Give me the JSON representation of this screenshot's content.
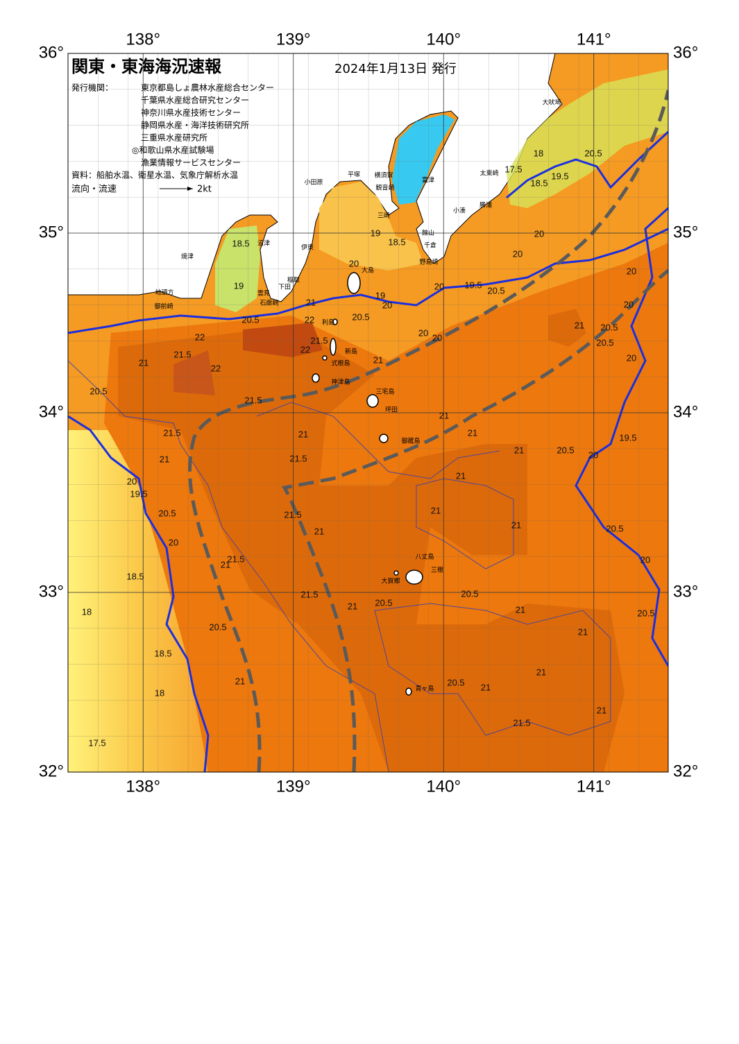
{
  "header": {
    "title": "関東・東海海況速報",
    "date": "2024年1月13日 発行"
  },
  "issuers": {
    "label": "発行機関：",
    "names": [
      "東京都島しょ農林水産総合センター",
      "千葉県水産総合研究センター",
      "神奈川県水産技術センター",
      "静岡県水産・海洋技術研究所",
      "三重県水産研究所",
      "◎和歌山県水産試験場",
      "漁業情報サービスセンター"
    ]
  },
  "source": "資料：船舶水温、衛星水温、気象庁解析水温",
  "legend": {
    "label": "流向・流速",
    "scale": "2kt"
  },
  "axes": {
    "lon_ticks": [
      {
        "value": 138,
        "label": "138°"
      },
      {
        "value": 139,
        "label": "139°"
      },
      {
        "value": 140,
        "label": "140°"
      },
      {
        "value": 141,
        "label": "141°"
      }
    ],
    "lat_ticks": [
      {
        "value": 36,
        "label": "36°"
      },
      {
        "value": 35,
        "label": "35°"
      },
      {
        "value": 34,
        "label": "34°"
      },
      {
        "value": 33,
        "label": "33°"
      },
      {
        "value": 32,
        "label": "32°"
      }
    ]
  },
  "places": [
    "大吠埼",
    "太東崎",
    "勝浦",
    "小湊",
    "館山",
    "千倉",
    "野島埼",
    "富津",
    "横須賀",
    "観音崎",
    "三崎",
    "平塚",
    "小田原",
    "伊東",
    "稲取",
    "下田",
    "雲見",
    "石廊崎",
    "沼津",
    "焼津",
    "地頭方",
    "御前崎",
    "大島",
    "利島",
    "新島",
    "式根島",
    "神津島",
    "三宅島",
    "坪田",
    "御蔵島",
    "八丈島",
    "三根",
    "大賀郷",
    "青ヶ島"
  ],
  "contour_labels": [
    "20.5",
    "22",
    "21",
    "21.5",
    "22",
    "22",
    "21.5",
    "21",
    "22",
    "20.5",
    "21.5",
    "21.5",
    "21",
    "21.5",
    "21",
    "20",
    "19.5",
    "20.5",
    "20",
    "21.5",
    "21",
    "21",
    "21.5",
    "18.5",
    "18",
    "20.5",
    "18.5",
    "18",
    "21",
    "17.5",
    "21.5",
    "21",
    "20.5",
    "20.5",
    "21",
    "21",
    "21",
    "21",
    "21",
    "21",
    "21",
    "21",
    "21",
    "20.5",
    "21",
    "21.5",
    "21",
    "21",
    "20.5",
    "19",
    "20",
    "20",
    "19",
    "18.5",
    "20",
    "19.5",
    "20.5",
    "20",
    "20",
    "20",
    "20",
    "20.5",
    "18",
    "17.5",
    "18.5",
    "19.5",
    "20",
    "20",
    "20.5",
    "20.5",
    "20",
    "21",
    "20.5",
    "20",
    "19.5",
    "20.5",
    "20",
    "20.5",
    "18.5",
    "19"
  ]
}
